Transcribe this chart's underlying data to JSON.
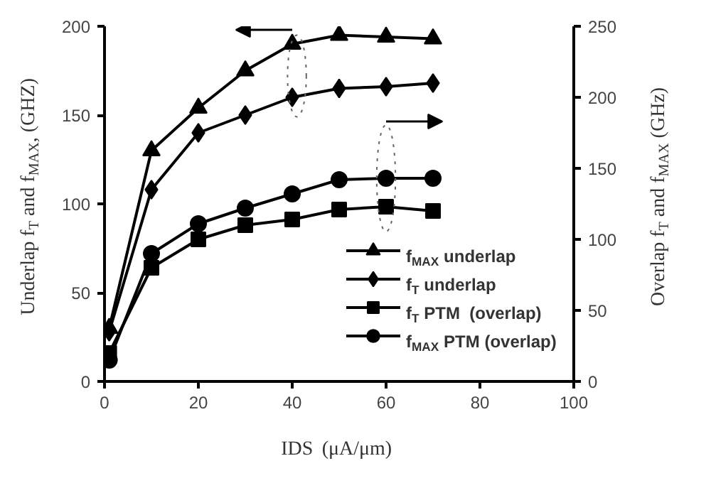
{
  "chart_data": {
    "type": "line",
    "xlabel": "IDS (μA/μm)",
    "ylabel": "Underlap f$_{T}$ and f$_{MAX}$, (GHZ)",
    "y2label": "Overlap f$_{T}$ and f$_{MAX}$ (GHz)",
    "x": [
      1,
      10,
      20,
      30,
      40,
      50,
      60,
      70
    ],
    "series": [
      {
        "name": "f$_{MAX}$ underlap",
        "color": "#000000",
        "marker": "triangle",
        "values": [
          30,
          130,
          154,
          175,
          190,
          195,
          194,
          193
        ]
      },
      {
        "name": "f$_{T}$ underlap",
        "color": "#000000",
        "marker": "diamond",
        "values": [
          28,
          108,
          140,
          150,
          160,
          165,
          166,
          168
        ]
      },
      {
        "name": "f$_{T}$ PTM  (overlap)",
        "color": "#000000",
        "marker": "square",
        "axis": "y2",
        "values": [
          20,
          80,
          100,
          110,
          114,
          121,
          123,
          120
        ]
      },
      {
        "name": "f$_{MAX}$ PTM (overlap)",
        "color": "#000000",
        "marker": "circle",
        "axis": "y2",
        "values": [
          15,
          90,
          111,
          122,
          132,
          142,
          143,
          143
        ]
      }
    ],
    "xlim": [
      0,
      100
    ],
    "xticks": [
      0,
      20,
      40,
      60,
      80,
      100
    ],
    "ylim": [
      0,
      200
    ],
    "yticks": [
      0,
      50,
      100,
      150,
      200
    ],
    "y2lim": [
      0,
      250
    ],
    "y2ticks": [
      0,
      50,
      100,
      150,
      200,
      250
    ],
    "grid": false,
    "legend": "bottom right",
    "line_style": "solid"
  }
}
